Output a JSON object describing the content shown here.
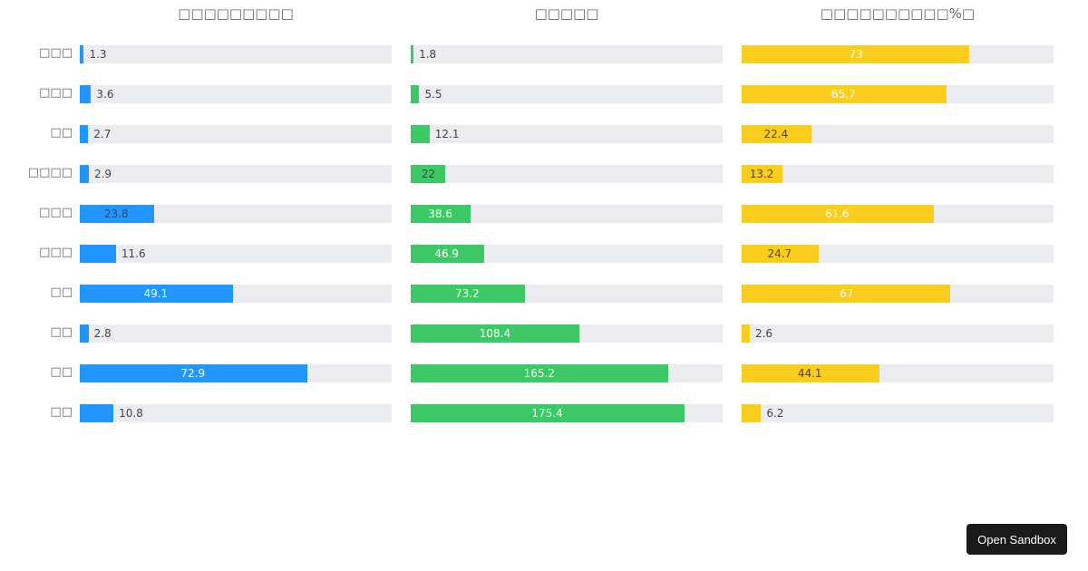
{
  "chart_data": [
    {
      "type": "bar",
      "orientation": "horizontal",
      "title": "□□□□□□□□□",
      "color": "#2196ff",
      "xlim": [
        0,
        100
      ],
      "categories": [
        "□□□",
        "□□□",
        "□□",
        "□□□□",
        "□□□",
        "□□□",
        "□□",
        "□□",
        "□□",
        "□□"
      ],
      "values": [
        1.3,
        3.6,
        2.7,
        2.9,
        23.8,
        11.6,
        49.1,
        2.8,
        72.9,
        10.8
      ]
    },
    {
      "type": "bar",
      "orientation": "horizontal",
      "title": "□□□□□",
      "color": "#3cc864",
      "xlim": [
        0,
        200
      ],
      "categories": [
        "□□□",
        "□□□",
        "□□",
        "□□□□",
        "□□□",
        "□□□",
        "□□",
        "□□",
        "□□",
        "□□"
      ],
      "values": [
        1.8,
        5.5,
        12.1,
        22,
        38.6,
        46.9,
        73.2,
        108.4,
        165.2,
        175.4
      ]
    },
    {
      "type": "bar",
      "orientation": "horizontal",
      "title": "□□□□□□□□□□%□",
      "color": "#facd1e",
      "xlim": [
        0,
        100
      ],
      "categories": [
        "□□□",
        "□□□",
        "□□",
        "□□□□",
        "□□□",
        "□□□",
        "□□",
        "□□",
        "□□",
        "□□"
      ],
      "values": [
        73,
        65.7,
        22.4,
        13.2,
        61.6,
        24.7,
        67,
        2.6,
        44.1,
        6.2
      ]
    }
  ],
  "track_color": "#ebecef",
  "sandbox_button": "Open Sandbox"
}
